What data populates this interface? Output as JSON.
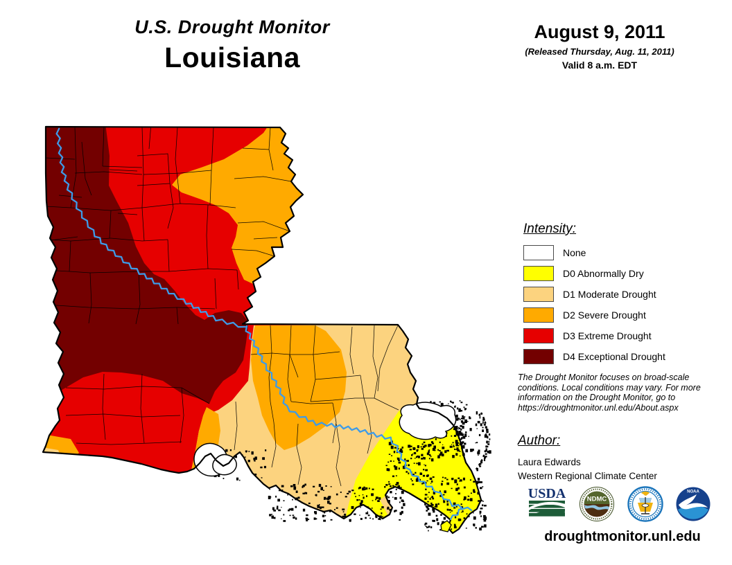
{
  "header": {
    "title": "U.S. Drought Monitor",
    "state": "Louisiana",
    "date": "August 9, 2011",
    "released": "(Released Thursday, Aug. 11, 2011)",
    "valid": "Valid 8 a.m. EDT"
  },
  "legend": {
    "heading": "Intensity:",
    "items": [
      {
        "label": "None",
        "color": "#FFFFFF"
      },
      {
        "label": "D0 Abnormally Dry",
        "color": "#FFFF00"
      },
      {
        "label": "D1 Moderate Drought",
        "color": "#FCD37F"
      },
      {
        "label": "D2 Severe Drought",
        "color": "#FFAA00"
      },
      {
        "label": "D3 Extreme Drought",
        "color": "#E60000"
      },
      {
        "label": "D4 Exceptional Drought",
        "color": "#730000"
      }
    ]
  },
  "disclaimer": {
    "line1": "The Drought Monitor focuses on broad-scale",
    "line2": "conditions. Local conditions may vary. For more",
    "line3": "information on the Drought Monitor, go to",
    "line4": "https://droughtmonitor.unl.edu/About.aspx"
  },
  "author": {
    "heading": "Author:",
    "name": "Laura Edwards",
    "org": "Western Regional Climate Center"
  },
  "footer": {
    "website": "droughtmonitor.unl.edu"
  },
  "logos": {
    "usda": "USDA",
    "ndmc": "NDMC",
    "noaa": "NOAA"
  },
  "map": {
    "region": "Louisiana",
    "river_color": "#3D9BE8",
    "outline_color": "#000000",
    "water_color": "#FFFFFF"
  }
}
